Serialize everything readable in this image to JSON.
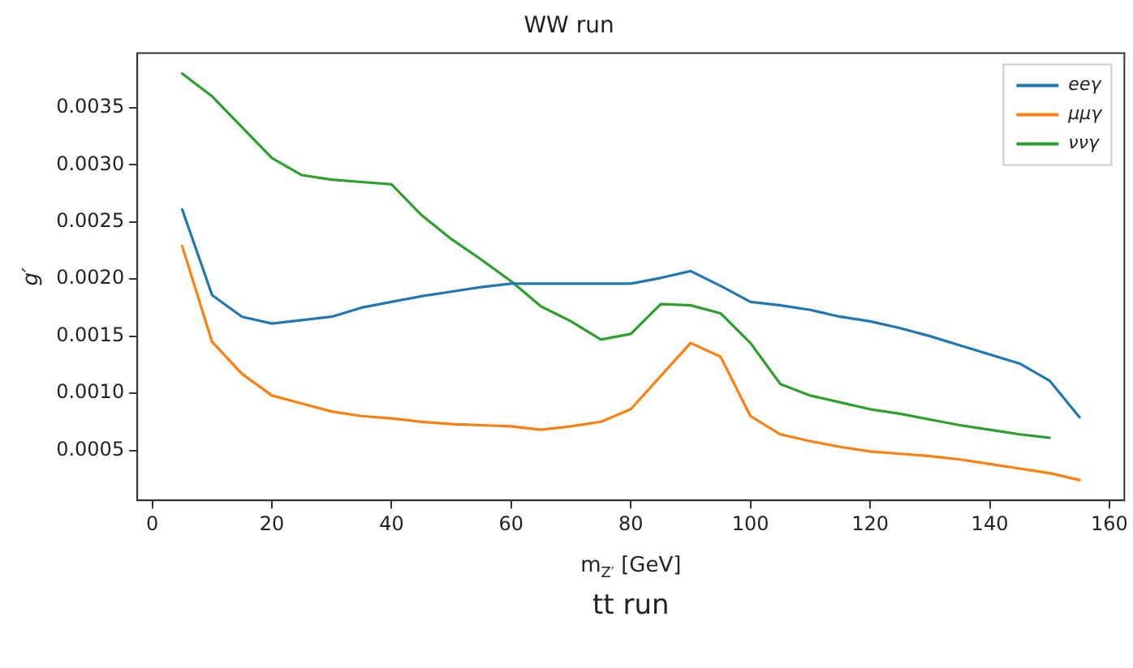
{
  "chart_data": {
    "type": "line",
    "title": "WW run",
    "xlabel": "m$_{Z′}$ [GeV]",
    "ylabel": "g′",
    "annotations": [
      "tt run"
    ],
    "x": [
      5,
      10,
      15,
      20,
      25,
      30,
      35,
      40,
      45,
      50,
      55,
      60,
      65,
      70,
      75,
      80,
      85,
      90,
      95,
      100,
      105,
      110,
      115,
      120,
      125,
      130,
      135,
      140,
      145,
      150,
      155
    ],
    "series": [
      {
        "name": "eeγ",
        "color": "#1f77b4",
        "values": [
          0.00261,
          0.00186,
          0.00167,
          0.00161,
          0.00164,
          0.00167,
          0.00175,
          0.0018,
          0.00185,
          0.00189,
          0.00193,
          0.00196,
          0.00196,
          0.00196,
          0.00196,
          0.00196,
          0.00201,
          0.00207,
          0.00194,
          0.0018,
          0.00177,
          0.00173,
          0.00167,
          0.00163,
          0.00157,
          0.0015,
          0.00142,
          0.00134,
          0.00126,
          0.00111,
          0.00079
        ]
      },
      {
        "name": "μμγ",
        "color": "#ff7f0e",
        "values": [
          0.00229,
          0.00145,
          0.00117,
          0.00098,
          0.00091,
          0.00084,
          0.0008,
          0.00078,
          0.00075,
          0.00073,
          0.00072,
          0.00071,
          0.00068,
          0.00071,
          0.00075,
          0.00086,
          0.00115,
          0.00144,
          0.00132,
          0.0008,
          0.00064,
          0.00058,
          0.00053,
          0.00049,
          0.00047,
          0.00045,
          0.00042,
          0.00038,
          0.00034,
          0.0003,
          0.00024
        ]
      },
      {
        "name": "ννγ",
        "color": "#2ca02c",
        "values": [
          0.0038,
          0.0036,
          0.00333,
          0.00306,
          0.00291,
          0.00287,
          0.00285,
          0.00283,
          0.00256,
          0.00235,
          0.00217,
          0.00198,
          0.00176,
          0.00163,
          0.00147,
          0.00152,
          0.00178,
          0.00177,
          0.0017,
          0.00144,
          0.00108,
          0.00098,
          0.00092,
          0.00086,
          0.00082,
          0.00077,
          0.00072,
          0.00068,
          0.00064,
          0.00061,
          null
        ]
      }
    ],
    "xlim": [
      -2.5,
      162.5
    ],
    "xticks": [
      0,
      20,
      40,
      60,
      80,
      100,
      120,
      140,
      160
    ],
    "ylim": [
      6.2e-05,
      0.003978
    ],
    "yticks": [
      0.0005,
      {
        "value": 0.001,
        "label": "0.0010"
      },
      0.0015,
      {
        "value": 0.002,
        "label": "0.0020"
      },
      0.0025,
      {
        "value": 0.003,
        "label": "0.0030"
      },
      0.0035
    ],
    "legend": "top right",
    "grid": false,
    "marker": "none",
    "line_style": "solid"
  }
}
